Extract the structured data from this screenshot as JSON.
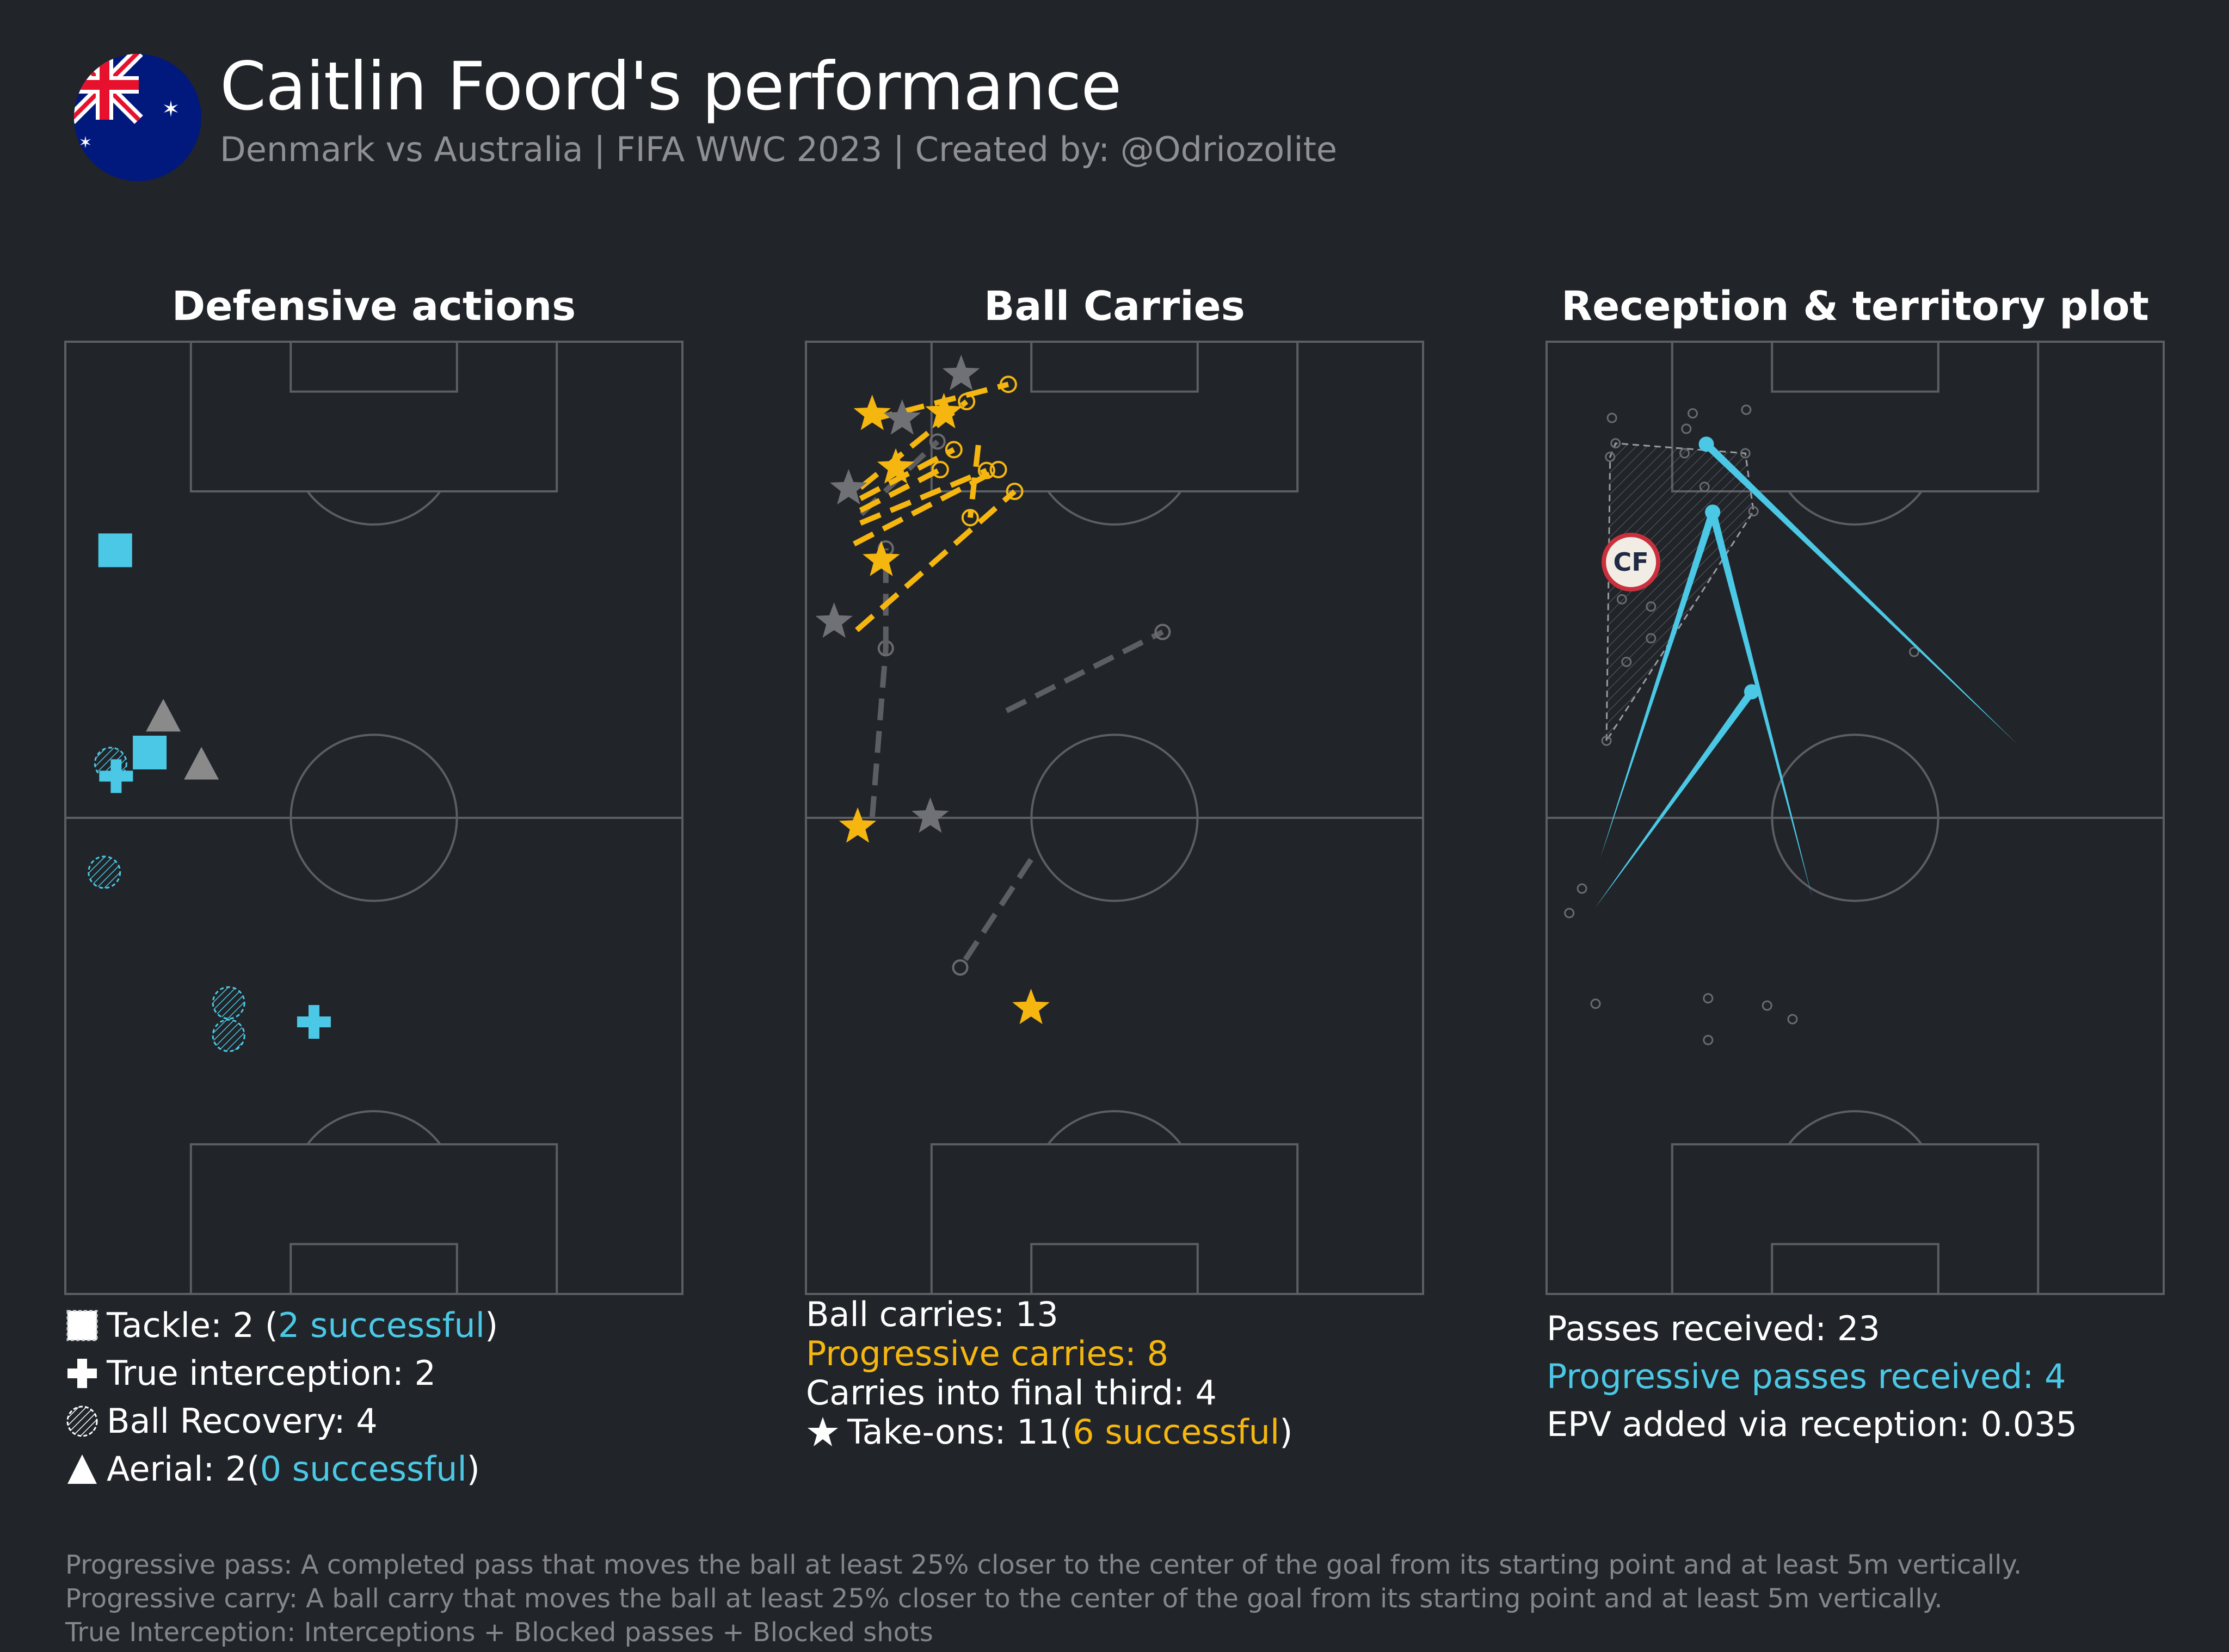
{
  "header": {
    "title": "Caitlin Foord's performance",
    "subtitle": "Denmark vs Australia | FIFA WWC 2023 | Created by: @Odriozolite",
    "flag": "australia-flag"
  },
  "colors": {
    "background": "#212429",
    "pitch_lines": "#5c5e63",
    "blue_accent": "#4bc8e5",
    "gold_accent": "#f5b70f",
    "grey_marker": "#8a8a8a",
    "muted_text": "#8f9096"
  },
  "panels": {
    "defensive": {
      "title": "Defensive actions",
      "stats": {
        "tackle_prefix": "Tackle: 2 (",
        "tackle_highlight": "2 successful",
        "tackle_suffix": ")",
        "interception": "True interception: 2",
        "recovery": "Ball Recovery: 4",
        "aerial_prefix": "Aerial: 2(",
        "aerial_highlight": "0 successful",
        "aerial_suffix": ")"
      }
    },
    "carries": {
      "title": "Ball Carries",
      "stats": {
        "carries": "Ball carries: 13",
        "progressive": "Progressive carries: 8",
        "final_third": "Carries into final third: 4",
        "takeons_prefix": "Take-ons: 11(",
        "takeons_highlight": "6 successful",
        "takeons_suffix": ")"
      }
    },
    "reception": {
      "title": "Reception & territory plot",
      "position_label": "CF",
      "stats": {
        "received": "Passes received: 23",
        "progressive_received": "Progressive passes received: 4",
        "epv": "EPV added via reception: 0.035"
      }
    }
  },
  "footnotes": {
    "line1": "Progressive pass: A completed pass that moves the ball at least 25% closer to the center of the goal from its starting point and at least 5m vertically.",
    "line2": "Progressive carry: A ball carry that moves the ball at least 25% closer to the center of the goal from its starting point and at least 5m vertically.",
    "line3": "True Interception: Interceptions + Blocked passes + Blocked shots"
  },
  "chart_data": [
    {
      "type": "scatter",
      "title": "Defensive actions",
      "x_range": [
        0,
        68
      ],
      "y_range": [
        0,
        105
      ],
      "series": [
        {
          "name": "Tackle",
          "successful": true,
          "points": [
            [
              5.5,
              82.0
            ],
            [
              9.3,
              59.7
            ]
          ]
        },
        {
          "name": "True interception",
          "points": [
            [
              5.6,
              57.1
            ],
            [
              27.4,
              30.0
            ]
          ]
        },
        {
          "name": "Ball Recovery",
          "points": [
            [
              5.0,
              58.5
            ],
            [
              4.3,
              46.5
            ],
            [
              18.0,
              32.1
            ],
            [
              18.0,
              28.5
            ]
          ]
        },
        {
          "name": "Aerial",
          "successful": false,
          "points": [
            [
              10.8,
              63.7
            ],
            [
              15.0,
              58.4
            ]
          ]
        }
      ]
    },
    {
      "type": "line",
      "title": "Ball Carries",
      "x_range": [
        0,
        68
      ],
      "y_range": [
        0,
        105
      ],
      "carries": [
        {
          "start": [
            7.2,
            96.4
          ],
          "end": [
            22.3,
            100.3
          ],
          "progressive": true
        },
        {
          "start": [
            6.0,
            88.9
          ],
          "end": [
            17.7,
            98.4
          ],
          "progressive": true
        },
        {
          "start": [
            6.0,
            87.7
          ],
          "end": [
            16.3,
            93.1
          ],
          "progressive": true
        },
        {
          "start": [
            6.0,
            86.4
          ],
          "end": [
            14.8,
            90.9
          ],
          "progressive": true
        },
        {
          "start": [
            6.0,
            85.0
          ],
          "end": [
            19.9,
            90.8
          ],
          "progressive": true
        },
        {
          "start": [
            5.6,
            73.2
          ],
          "end": [
            23.0,
            88.5
          ],
          "progressive": true
        },
        {
          "start": [
            19.0,
            93.6
          ],
          "end": [
            18.1,
            85.6
          ],
          "progressive": true
        },
        {
          "start": [
            5.3,
            82.7
          ],
          "end": [
            21.2,
            90.9
          ],
          "progressive": true
        },
        {
          "start": [
            7.3,
            52.5
          ],
          "end": [
            8.8,
            71.2
          ],
          "progressive": false
        },
        {
          "start": [
            8.8,
            71.2
          ],
          "end": [
            8.8,
            82.2
          ],
          "progressive": false
        },
        {
          "start": [
            22.1,
            64.3
          ],
          "end": [
            39.3,
            73.0
          ],
          "progressive": false
        },
        {
          "start": [
            24.8,
            47.9
          ],
          "end": [
            17.0,
            36.0
          ],
          "progressive": false
        },
        {
          "start": [
            6.1,
            86.0
          ],
          "end": [
            14.5,
            94.0
          ],
          "progressive": false
        }
      ],
      "takeons": [
        {
          "x": 7.3,
          "y": 97.0,
          "successful": true
        },
        {
          "x": 15.2,
          "y": 97.2,
          "successful": true
        },
        {
          "x": 9.9,
          "y": 91.1,
          "successful": true
        },
        {
          "x": 8.3,
          "y": 80.9,
          "successful": true
        },
        {
          "x": 5.7,
          "y": 51.5,
          "successful": true
        },
        {
          "x": 24.8,
          "y": 31.5,
          "successful": true
        },
        {
          "x": 17.1,
          "y": 101.4,
          "successful": false
        },
        {
          "x": 10.6,
          "y": 96.5,
          "successful": false
        },
        {
          "x": 4.7,
          "y": 88.8,
          "successful": false
        },
        {
          "x": 3.1,
          "y": 74.1,
          "successful": false
        },
        {
          "x": 13.7,
          "y": 52.6,
          "successful": false
        }
      ]
    },
    {
      "type": "scatter",
      "title": "Reception & territory plot",
      "x_range": [
        0,
        68
      ],
      "y_range": [
        0,
        105
      ],
      "receptions": [
        [
          7.2,
          96.6
        ],
        [
          16.1,
          97.1
        ],
        [
          22.0,
          97.5
        ],
        [
          15.4,
          95.4
        ],
        [
          7.6,
          93.8
        ],
        [
          7.0,
          92.3
        ],
        [
          15.2,
          92.7
        ],
        [
          21.9,
          92.7
        ],
        [
          17.4,
          89.0
        ],
        [
          8.3,
          76.6
        ],
        [
          11.5,
          75.8
        ],
        [
          40.5,
          70.8
        ],
        [
          8.8,
          69.7
        ],
        [
          11.5,
          72.3
        ],
        [
          6.6,
          61.0
        ],
        [
          3.9,
          44.7
        ],
        [
          2.5,
          42.0
        ],
        [
          5.4,
          32.0
        ],
        [
          17.8,
          32.6
        ],
        [
          24.3,
          31.8
        ],
        [
          27.1,
          30.3
        ],
        [
          17.8,
          28.0
        ],
        [
          22.8,
          86.3
        ]
      ],
      "progressive_passes_received": [
        {
          "start": [
            52.0,
            60.5
          ],
          "end": [
            17.6,
            93.7
          ]
        },
        {
          "start": [
            5.3,
            42.5
          ],
          "end": [
            22.6,
            66.4
          ]
        },
        {
          "start": [
            29.3,
            43.6
          ],
          "end": [
            18.3,
            86.2
          ]
        },
        {
          "start": [
            5.9,
            48.0
          ],
          "end": [
            18.3,
            86.2
          ]
        }
      ],
      "average_position": {
        "label": "CF",
        "x": 9.3,
        "y": 80.7
      }
    }
  ]
}
